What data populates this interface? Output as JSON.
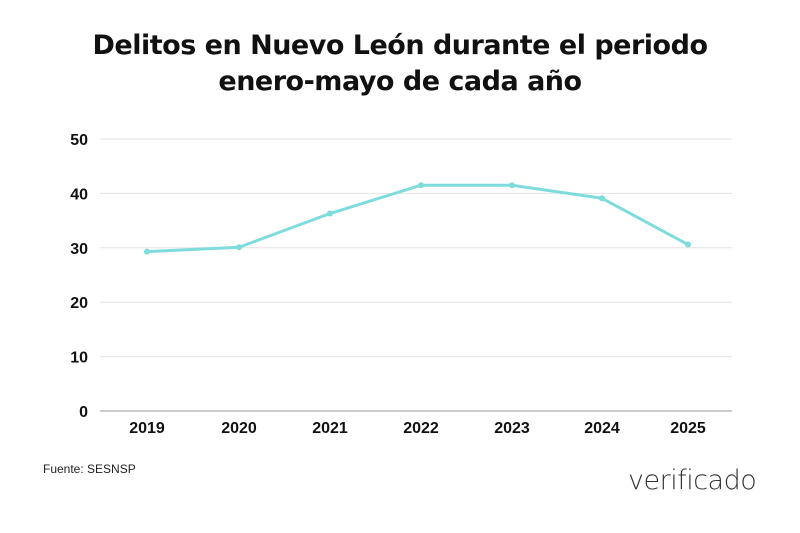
{
  "chart_data": {
    "type": "line",
    "title_lines": [
      "Delitos en Nuevo León durante el periodo",
      "enero-mayo de cada año"
    ],
    "categories": [
      "2019",
      "2020",
      "2021",
      "2022",
      "2023",
      "2024",
      "2025"
    ],
    "values": [
      29.3,
      30.1,
      36.3,
      41.5,
      41.5,
      39.1,
      30.6
    ],
    "ylim": [
      0,
      50
    ],
    "yticks": [
      "0",
      "10",
      "20",
      "30",
      "40",
      "50"
    ],
    "xlabel": "",
    "ylabel": "",
    "grid": true,
    "line_color": "#7fdcdc"
  },
  "source": "Fuente: SESNSP",
  "logo": "verificado"
}
